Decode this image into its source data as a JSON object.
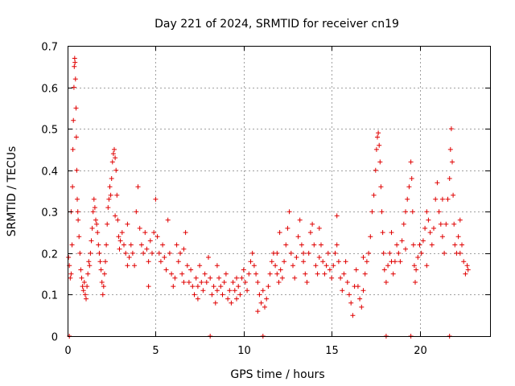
{
  "chart_data": {
    "type": "scatter",
    "title": "Day 221 of 2024, SRMTID for receiver cn19",
    "xlabel": "GPS time / hours",
    "ylabel": "SRMTID / TECUs",
    "xlim": [
      0,
      24
    ],
    "ylim": [
      0,
      0.7
    ],
    "xticks": [
      0,
      5,
      10,
      15,
      20
    ],
    "xtick_labels": [
      "0",
      "5",
      "10",
      "15",
      "20"
    ],
    "yticks": [
      0,
      0.1,
      0.2,
      0.3,
      0.4,
      0.5,
      0.6,
      0.7
    ],
    "ytick_labels": [
      "0",
      "0.1",
      "0.2",
      "0.3",
      "0.4",
      "0.5",
      "0.6",
      "0.7"
    ],
    "grid": true,
    "marker": "+",
    "color": "#e00000",
    "series": [
      {
        "name": "SRMTID",
        "points": [
          [
            0.05,
            0.19
          ],
          [
            0.1,
            0.17
          ],
          [
            0.15,
            0.14
          ],
          [
            0.2,
            0.15
          ],
          [
            0.25,
            0.22
          ],
          [
            0.28,
            0.36
          ],
          [
            0.3,
            0.45
          ],
          [
            0.33,
            0.52
          ],
          [
            0.36,
            0.6
          ],
          [
            0.38,
            0.65
          ],
          [
            0.4,
            0.67
          ],
          [
            0.42,
            0.66
          ],
          [
            0.45,
            0.62
          ],
          [
            0.48,
            0.55
          ],
          [
            0.5,
            0.48
          ],
          [
            0.52,
            0.4
          ],
          [
            0.55,
            0.33
          ],
          [
            0.58,
            0.3
          ],
          [
            0.6,
            0.28
          ],
          [
            0.65,
            0.24
          ],
          [
            0.7,
            0.2
          ],
          [
            0.75,
            0.16
          ],
          [
            0.8,
            0.14
          ],
          [
            0.85,
            0.12
          ],
          [
            0.9,
            0.11
          ],
          [
            0.95,
            0.13
          ],
          [
            1.0,
            0.1
          ],
          [
            1.05,
            0.09
          ],
          [
            1.1,
            0.12
          ],
          [
            1.15,
            0.15
          ],
          [
            1.2,
            0.18
          ],
          [
            1.25,
            0.17
          ],
          [
            1.3,
            0.2
          ],
          [
            1.35,
            0.23
          ],
          [
            1.4,
            0.26
          ],
          [
            1.45,
            0.3
          ],
          [
            1.5,
            0.33
          ],
          [
            1.55,
            0.31
          ],
          [
            1.6,
            0.28
          ],
          [
            1.65,
            0.27
          ],
          [
            1.7,
            0.25
          ],
          [
            1.75,
            0.22
          ],
          [
            1.8,
            0.2
          ],
          [
            1.85,
            0.18
          ],
          [
            1.9,
            0.16
          ],
          [
            1.95,
            0.13
          ],
          [
            2.0,
            0.1
          ],
          [
            2.05,
            0.12
          ],
          [
            2.1,
            0.15
          ],
          [
            2.15,
            0.18
          ],
          [
            2.2,
            0.22
          ],
          [
            2.25,
            0.27
          ],
          [
            2.3,
            0.31
          ],
          [
            2.35,
            0.33
          ],
          [
            2.4,
            0.36
          ],
          [
            2.45,
            0.34
          ],
          [
            2.5,
            0.38
          ],
          [
            2.55,
            0.42
          ],
          [
            2.6,
            0.44
          ],
          [
            2.65,
            0.45
          ],
          [
            2.7,
            0.43
          ],
          [
            2.75,
            0.4
          ],
          [
            2.8,
            0.34
          ],
          [
            2.85,
            0.28
          ],
          [
            2.9,
            0.24
          ],
          [
            2.95,
            0.21
          ],
          [
            3.0,
            0.23
          ],
          [
            3.1,
            0.25
          ],
          [
            3.2,
            0.22
          ],
          [
            3.3,
            0.2
          ],
          [
            3.4,
            0.17
          ],
          [
            3.5,
            0.19
          ],
          [
            3.6,
            0.22
          ],
          [
            3.7,
            0.2
          ],
          [
            3.8,
            0.17
          ],
          [
            3.9,
            0.3
          ],
          [
            4.0,
            0.36
          ],
          [
            4.1,
            0.26
          ],
          [
            4.2,
            0.22
          ],
          [
            4.3,
            0.2
          ],
          [
            4.4,
            0.25
          ],
          [
            4.5,
            0.21
          ],
          [
            4.6,
            0.18
          ],
          [
            4.7,
            0.23
          ],
          [
            4.8,
            0.2
          ],
          [
            4.9,
            0.25
          ],
          [
            5.0,
            0.33
          ],
          [
            5.1,
            0.24
          ],
          [
            5.2,
            0.2
          ],
          [
            5.3,
            0.18
          ],
          [
            5.4,
            0.22
          ],
          [
            5.5,
            0.19
          ],
          [
            5.6,
            0.16
          ],
          [
            5.7,
            0.28
          ],
          [
            5.8,
            0.2
          ],
          [
            5.9,
            0.15
          ],
          [
            6.0,
            0.12
          ],
          [
            6.1,
            0.14
          ],
          [
            6.2,
            0.22
          ],
          [
            6.3,
            0.18
          ],
          [
            6.4,
            0.2
          ],
          [
            6.5,
            0.15
          ],
          [
            6.6,
            0.13
          ],
          [
            6.7,
            0.25
          ],
          [
            6.8,
            0.17
          ],
          [
            6.9,
            0.13
          ],
          [
            7.0,
            0.16
          ],
          [
            7.1,
            0.12
          ],
          [
            7.2,
            0.1
          ],
          [
            7.3,
            0.14
          ],
          [
            7.4,
            0.12
          ],
          [
            7.5,
            0.17
          ],
          [
            7.6,
            0.13
          ],
          [
            7.7,
            0.11
          ],
          [
            7.8,
            0.15
          ],
          [
            7.9,
            0.13
          ],
          [
            8.0,
            0.19
          ],
          [
            8.1,
            0.14
          ],
          [
            8.2,
            0.1
          ],
          [
            8.3,
            0.12
          ],
          [
            8.4,
            0.08
          ],
          [
            8.5,
            0.11
          ],
          [
            8.6,
            0.14
          ],
          [
            8.7,
            0.12
          ],
          [
            8.8,
            0.1
          ],
          [
            8.9,
            0.13
          ],
          [
            9.0,
            0.15
          ],
          [
            9.1,
            0.09
          ],
          [
            9.2,
            0.11
          ],
          [
            9.3,
            0.08
          ],
          [
            9.4,
            0.13
          ],
          [
            9.5,
            0.11
          ],
          [
            9.6,
            0.09
          ],
          [
            9.7,
            0.12
          ],
          [
            9.8,
            0.1
          ],
          [
            9.9,
            0.14
          ],
          [
            10.0,
            0.16
          ],
          [
            10.1,
            0.13
          ],
          [
            10.2,
            0.11
          ],
          [
            10.3,
            0.15
          ],
          [
            10.4,
            0.18
          ],
          [
            10.5,
            0.2
          ],
          [
            10.6,
            0.17
          ],
          [
            10.7,
            0.15
          ],
          [
            10.8,
            0.13
          ],
          [
            10.9,
            0.1
          ],
          [
            11.0,
            0.08
          ],
          [
            11.1,
            0.11
          ],
          [
            11.2,
            0.07
          ],
          [
            11.3,
            0.09
          ],
          [
            11.4,
            0.12
          ],
          [
            11.5,
            0.15
          ],
          [
            11.6,
            0.18
          ],
          [
            11.7,
            0.2
          ],
          [
            11.8,
            0.17
          ],
          [
            11.9,
            0.15
          ],
          [
            12.0,
            0.13
          ],
          [
            12.1,
            0.16
          ],
          [
            12.2,
            0.14
          ],
          [
            12.3,
            0.18
          ],
          [
            12.4,
            0.22
          ],
          [
            12.5,
            0.26
          ],
          [
            12.6,
            0.3
          ],
          [
            12.7,
            0.2
          ],
          [
            12.8,
            0.17
          ],
          [
            12.9,
            0.14
          ],
          [
            13.0,
            0.19
          ],
          [
            13.1,
            0.24
          ],
          [
            13.2,
            0.28
          ],
          [
            13.3,
            0.22
          ],
          [
            13.4,
            0.18
          ],
          [
            13.5,
            0.15
          ],
          [
            13.6,
            0.13
          ],
          [
            13.7,
            0.2
          ],
          [
            13.8,
            0.25
          ],
          [
            13.9,
            0.27
          ],
          [
            14.0,
            0.22
          ],
          [
            14.1,
            0.17
          ],
          [
            14.2,
            0.15
          ],
          [
            14.3,
            0.19
          ],
          [
            14.4,
            0.22
          ],
          [
            14.5,
            0.18
          ],
          [
            14.6,
            0.15
          ],
          [
            14.7,
            0.17
          ],
          [
            14.8,
            0.2
          ],
          [
            14.9,
            0.16
          ],
          [
            15.0,
            0.14
          ],
          [
            15.1,
            0.17
          ],
          [
            15.2,
            0.2
          ],
          [
            15.3,
            0.22
          ],
          [
            15.4,
            0.18
          ],
          [
            15.5,
            0.14
          ],
          [
            15.6,
            0.11
          ],
          [
            15.7,
            0.15
          ],
          [
            15.8,
            0.18
          ],
          [
            15.9,
            0.13
          ],
          [
            16.0,
            0.1
          ],
          [
            16.1,
            0.08
          ],
          [
            16.2,
            0.05
          ],
          [
            16.3,
            0.12
          ],
          [
            16.4,
            0.16
          ],
          [
            16.5,
            0.12
          ],
          [
            16.6,
            0.09
          ],
          [
            16.7,
            0.07
          ],
          [
            16.8,
            0.11
          ],
          [
            16.9,
            0.15
          ],
          [
            17.0,
            0.18
          ],
          [
            17.1,
            0.2
          ],
          [
            17.2,
            0.24
          ],
          [
            17.3,
            0.3
          ],
          [
            17.4,
            0.34
          ],
          [
            17.5,
            0.4
          ],
          [
            17.55,
            0.45
          ],
          [
            17.6,
            0.48
          ],
          [
            17.65,
            0.49
          ],
          [
            17.7,
            0.46
          ],
          [
            17.75,
            0.42
          ],
          [
            17.8,
            0.36
          ],
          [
            17.85,
            0.3
          ],
          [
            17.9,
            0.25
          ],
          [
            17.95,
            0.2
          ],
          [
            18.0,
            0.16
          ],
          [
            18.1,
            0.13
          ],
          [
            18.2,
            0.17
          ],
          [
            18.3,
            0.2
          ],
          [
            18.4,
            0.18
          ],
          [
            18.5,
            0.15
          ],
          [
            18.6,
            0.18
          ],
          [
            18.7,
            0.22
          ],
          [
            18.8,
            0.2
          ],
          [
            18.9,
            0.18
          ],
          [
            19.0,
            0.23
          ],
          [
            19.1,
            0.27
          ],
          [
            19.2,
            0.3
          ],
          [
            19.3,
            0.33
          ],
          [
            19.4,
            0.36
          ],
          [
            19.5,
            0.42
          ],
          [
            19.55,
            0.38
          ],
          [
            19.6,
            0.3
          ],
          [
            19.65,
            0.22
          ],
          [
            19.7,
            0.17
          ],
          [
            19.75,
            0.13
          ],
          [
            19.8,
            0.16
          ],
          [
            19.9,
            0.19
          ],
          [
            20.0,
            0.22
          ],
          [
            20.1,
            0.2
          ],
          [
            20.2,
            0.23
          ],
          [
            20.3,
            0.26
          ],
          [
            20.4,
            0.3
          ],
          [
            20.5,
            0.28
          ],
          [
            20.6,
            0.25
          ],
          [
            20.7,
            0.22
          ],
          [
            20.8,
            0.26
          ],
          [
            20.9,
            0.33
          ],
          [
            21.0,
            0.37
          ],
          [
            21.1,
            0.3
          ],
          [
            21.2,
            0.27
          ],
          [
            21.3,
            0.24
          ],
          [
            21.4,
            0.2
          ],
          [
            21.5,
            0.27
          ],
          [
            21.6,
            0.33
          ],
          [
            21.7,
            0.38
          ],
          [
            21.75,
            0.45
          ],
          [
            21.8,
            0.5
          ],
          [
            21.85,
            0.42
          ],
          [
            21.9,
            0.34
          ],
          [
            21.95,
            0.27
          ],
          [
            22.0,
            0.22
          ],
          [
            22.1,
            0.2
          ],
          [
            22.2,
            0.24
          ],
          [
            22.3,
            0.28
          ],
          [
            22.4,
            0.22
          ],
          [
            22.5,
            0.18
          ],
          [
            22.6,
            0.15
          ],
          [
            22.7,
            0.17
          ],
          [
            22.75,
            0.16
          ],
          [
            0.2,
            0.3
          ],
          [
            2.7,
            0.29
          ],
          [
            8.5,
            0.17
          ],
          [
            12.05,
            0.25
          ],
          [
            13.4,
            0.2
          ],
          [
            14.3,
            0.26
          ],
          [
            15.3,
            0.29
          ],
          [
            16.8,
            0.19
          ],
          [
            18.4,
            0.25
          ],
          [
            19.2,
            0.21
          ],
          [
            20.4,
            0.17
          ],
          [
            21.3,
            0.33
          ],
          [
            22.3,
            0.2
          ],
          [
            3.4,
            0.27
          ],
          [
            4.6,
            0.12
          ],
          [
            6.6,
            0.21
          ],
          [
            7.4,
            0.09
          ],
          [
            9.6,
            0.14
          ],
          [
            10.8,
            0.06
          ],
          [
            11.9,
            0.2
          ],
          [
            0.1,
            0.0
          ],
          [
            8.1,
            0.0
          ],
          [
            11.1,
            0.0
          ],
          [
            18.1,
            0.0
          ],
          [
            19.5,
            0.0
          ],
          [
            21.7,
            0.0
          ]
        ]
      }
    ]
  }
}
